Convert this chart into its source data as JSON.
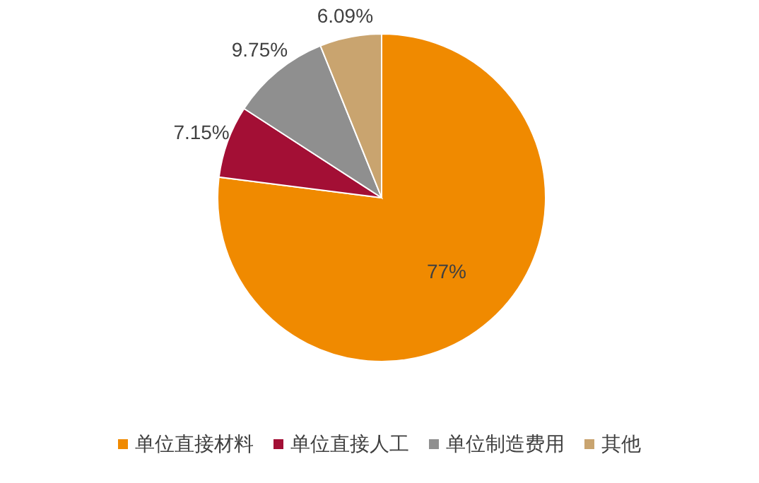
{
  "chart_data": {
    "type": "pie",
    "categories": [
      "单位直接材料",
      "单位直接人工",
      "单位制造费用",
      "其他"
    ],
    "values": [
      77,
      7.15,
      9.75,
      6.09
    ],
    "colors": [
      "#f08a00",
      "#a30f35",
      "#8f8f8f",
      "#c9a46f"
    ],
    "value_labels": [
      "77%",
      "7.15%",
      "9.75%",
      "6.09%"
    ],
    "legend": "bottom"
  }
}
